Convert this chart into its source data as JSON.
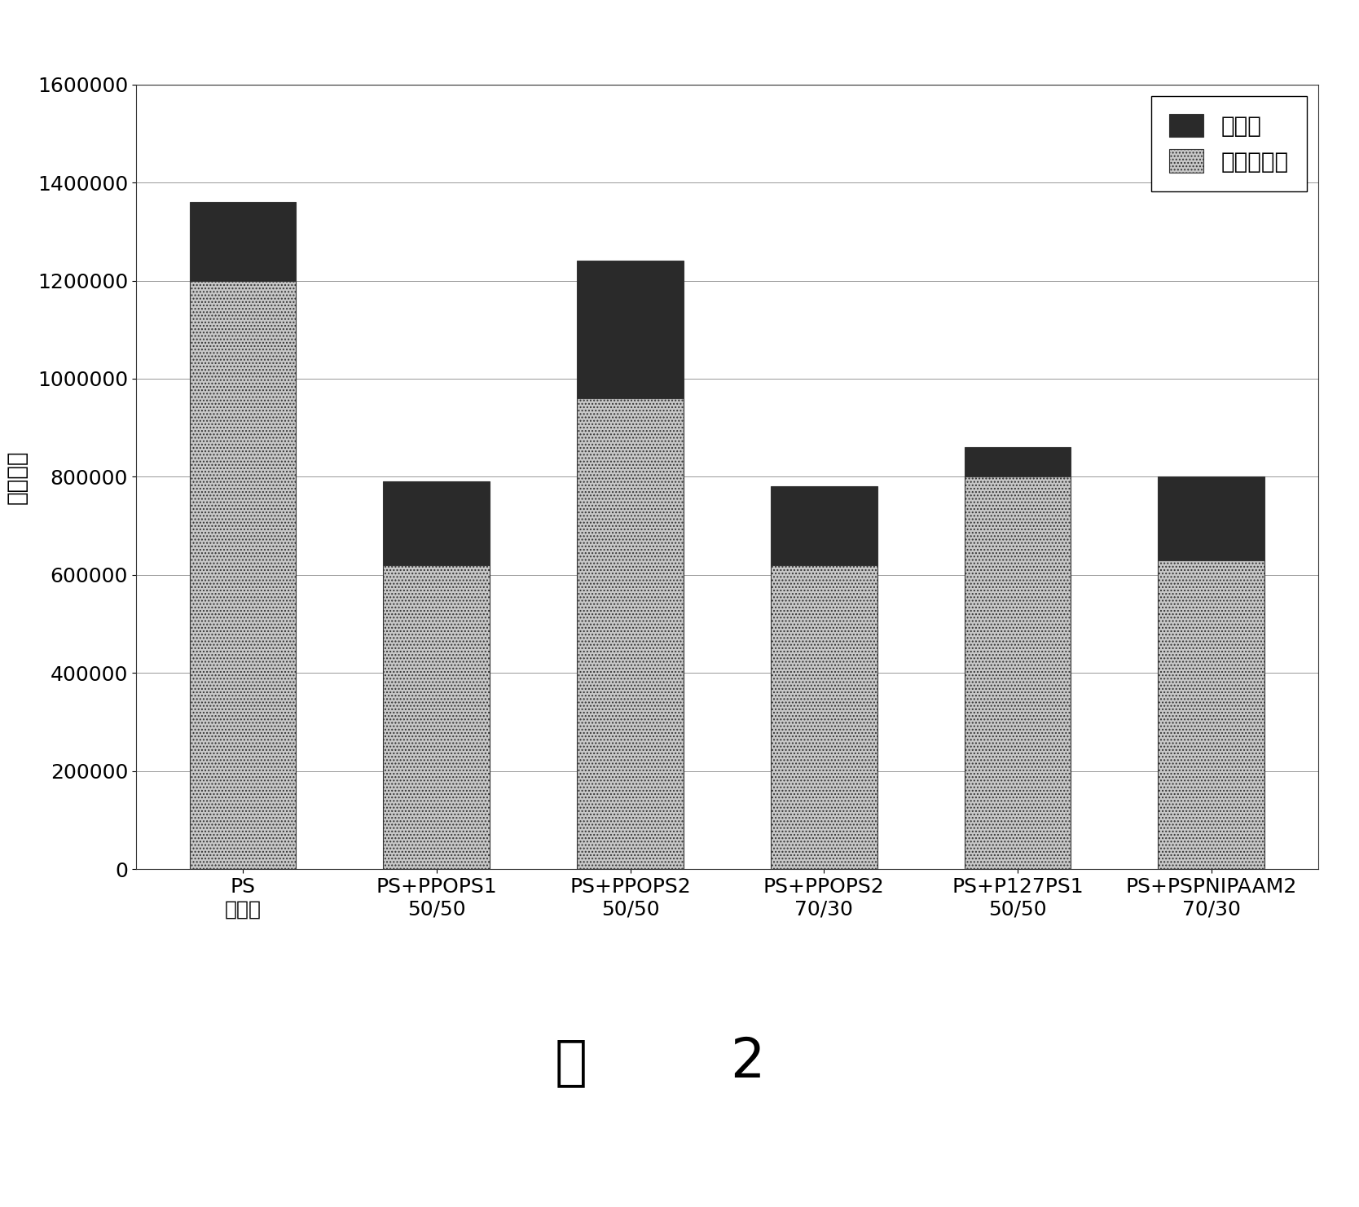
{
  "categories": [
    "PS\n参考値",
    "PS+PPOPS1\n50/50",
    "PS+PPOPS2\n50/50",
    "PS+PPOPS2\n70/30",
    "PS+P127PS1\n50/50",
    "PS+PSPNIPAAM2\n70/30"
  ],
  "unreleased": [
    160000,
    170000,
    280000,
    160000,
    60000,
    170000
  ],
  "released": [
    1200000,
    620000,
    960000,
    620000,
    800000,
    630000
  ],
  "ylabel": "细胞数目",
  "ylim": [
    0,
    1600000
  ],
  "yticks": [
    0,
    200000,
    400000,
    600000,
    800000,
    1000000,
    1200000,
    1400000,
    1600000
  ],
  "legend_unreleased": "未释放",
  "legend_released": "释放的细胞",
  "caption_zh": "图",
  "caption_num": "2",
  "unreleased_color": "#2a2a2a",
  "released_hatch_color": "#888888",
  "background_color": "#ffffff",
  "bar_width": 0.55,
  "axis_fontsize": 20,
  "tick_fontsize": 18,
  "legend_fontsize": 20,
  "caption_fontsize": 48,
  "grid_color": "#888888"
}
